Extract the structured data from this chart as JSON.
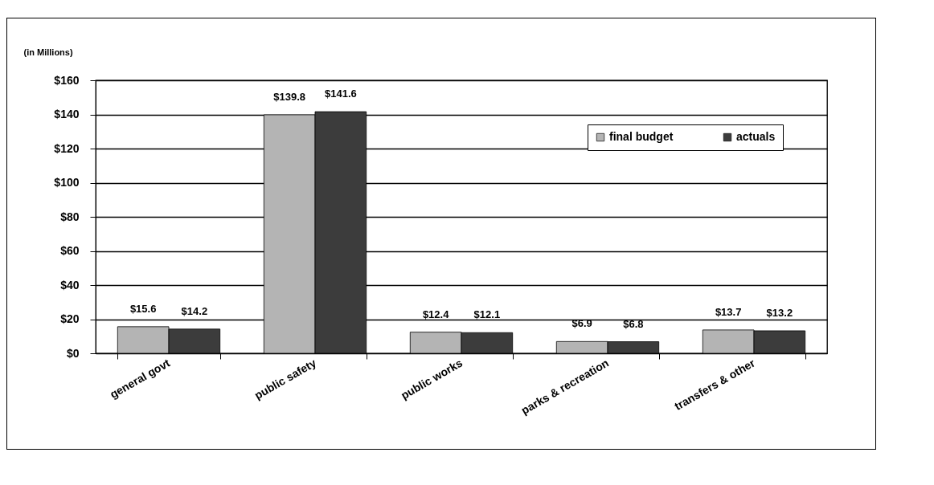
{
  "chart_data": {
    "type": "bar",
    "ylabel": "(in Millions)",
    "categories": [
      "general govt",
      "public safety",
      "public works",
      "parks & recreation",
      "transfers & other"
    ],
    "series": [
      {
        "name": "final budget",
        "color": "#b4b4b4",
        "values": [
          15.6,
          139.8,
          12.4,
          6.9,
          13.7
        ],
        "value_labels": [
          "$15.6",
          "$139.8",
          "$12.4",
          "$6.9",
          "$13.7"
        ]
      },
      {
        "name": "actuals",
        "color": "#3c3c3c",
        "values": [
          14.2,
          141.6,
          12.1,
          6.8,
          13.2
        ],
        "value_labels": [
          "$14.2",
          "$141.6",
          "$12.1",
          "$6.8",
          "$13.2"
        ]
      }
    ],
    "ylim": [
      0,
      160
    ],
    "yticks": [
      {
        "value": 0,
        "label": "$0"
      },
      {
        "value": 20,
        "label": "$20"
      },
      {
        "value": 40,
        "label": "$40"
      },
      {
        "value": 60,
        "label": "$60"
      },
      {
        "value": 80,
        "label": "$80"
      },
      {
        "value": 100,
        "label": "$100"
      },
      {
        "value": 120,
        "label": "$120"
      },
      {
        "value": 140,
        "label": "$140"
      },
      {
        "value": 160,
        "label": "$160"
      }
    ],
    "grid": "y",
    "legend": "top right"
  }
}
